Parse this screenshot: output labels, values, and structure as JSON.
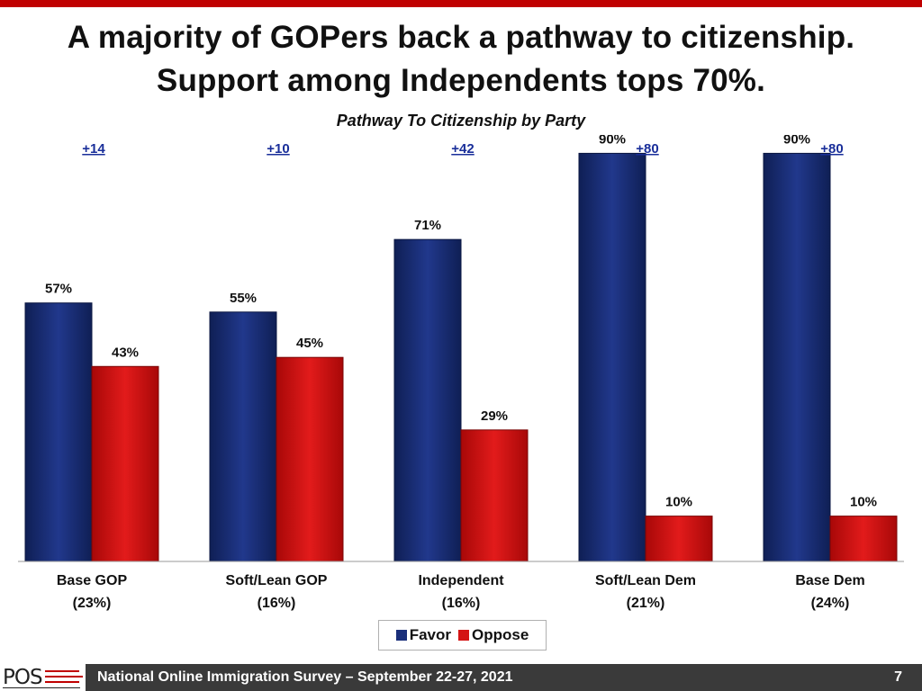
{
  "colors": {
    "accent": "#c00000",
    "favor": "#1a2f7a",
    "oppose": "#d41414",
    "footer": "#3a3a3a"
  },
  "title_line1": "A majority of GOPers back a pathway to citizenship.",
  "title_line2": "Support among Independents tops 70%.",
  "subtitle": "Pathway To Citizenship by Party",
  "legend": {
    "favor": "Favor",
    "oppose": "Oppose"
  },
  "footer": {
    "logo": "POS",
    "text": "National Online Immigration Survey – September 22-27, 2021",
    "page": "7"
  },
  "chart_data": {
    "type": "bar",
    "title": "Pathway To Citizenship by Party",
    "categories": [
      "Base GOP",
      "Soft/Lean GOP",
      "Independent",
      "Soft/Lean Dem",
      "Base Dem"
    ],
    "category_shares": [
      "(23%)",
      "(16%)",
      "(16%)",
      "(21%)",
      "(24%)"
    ],
    "margins": [
      "+14",
      "+10",
      "+42",
      "+80",
      "+80"
    ],
    "series": [
      {
        "name": "Favor",
        "values": [
          57,
          55,
          71,
          90,
          90
        ]
      },
      {
        "name": "Oppose",
        "values": [
          43,
          45,
          29,
          10,
          10
        ]
      }
    ],
    "value_suffix": "%",
    "ylim": [
      0,
      100
    ],
    "grid": false,
    "legend_position": "bottom-center"
  }
}
